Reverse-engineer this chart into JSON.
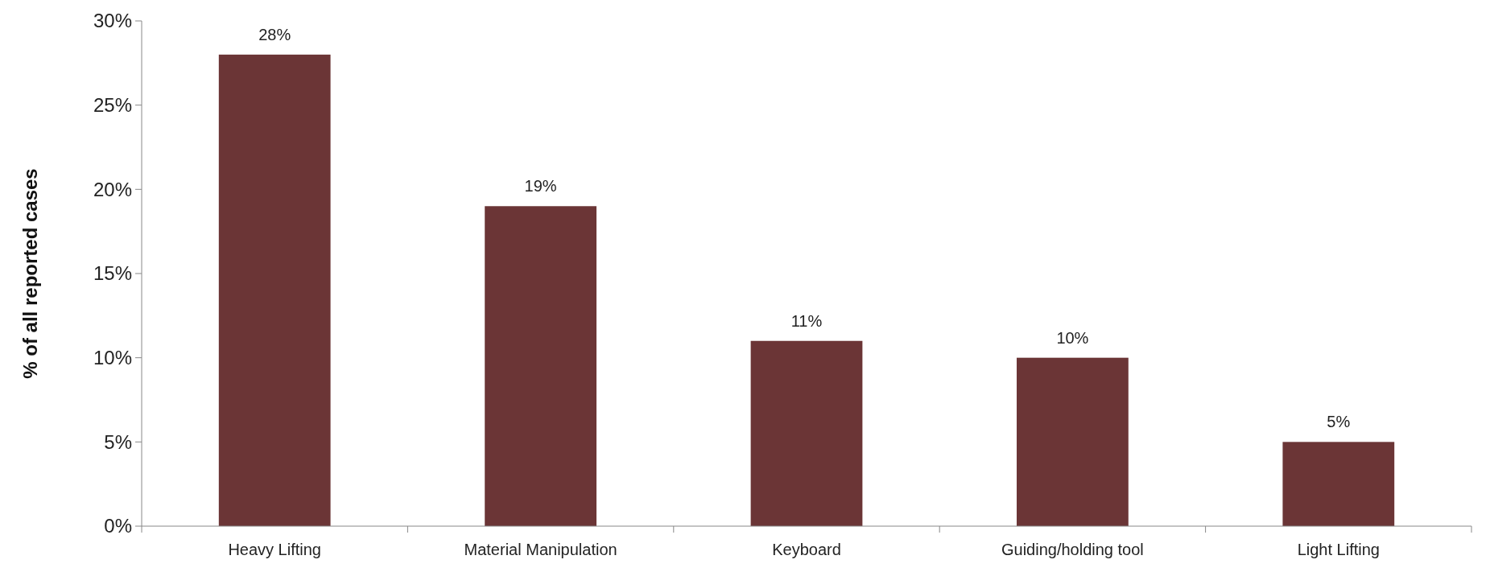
{
  "chart_data": {
    "type": "bar",
    "ylabel": "% of all reported cases",
    "categories": [
      "Heavy Lifting",
      "Material Manipulation",
      "Keyboard",
      "Guiding/holding tool",
      "Light Lifting"
    ],
    "values": [
      28,
      19,
      11,
      10,
      5
    ],
    "value_labels": [
      "28%",
      "19%",
      "11%",
      "10%",
      "5%"
    ],
    "color": "#6b3536",
    "ylim": [
      0,
      30
    ],
    "yticks": [
      {
        "value": 0,
        "label": "0%"
      },
      {
        "value": 5,
        "label": "5%"
      },
      {
        "value": 10,
        "label": "10%"
      },
      {
        "value": 15,
        "label": "15%"
      },
      {
        "value": 20,
        "label": "20%"
      },
      {
        "value": 25,
        "label": "25%"
      },
      {
        "value": 30,
        "label": "30%"
      }
    ],
    "tick_labels": "xy"
  }
}
